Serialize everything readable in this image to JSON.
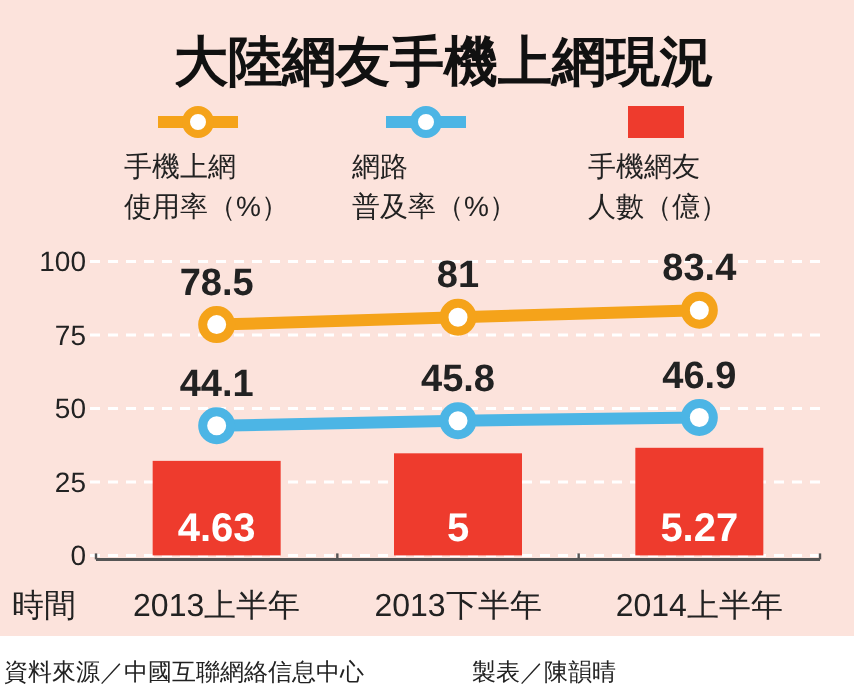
{
  "chart_data": {
    "type": "bar",
    "title": "大陸網友手機上網現況",
    "xlabel": "時間",
    "categories": [
      "2013上半年",
      "2013下半年",
      "2014上半年"
    ],
    "series": [
      {
        "name": "手機上網使用率（%）",
        "type": "line",
        "color": "#f5a31a",
        "values": [
          78.5,
          81,
          83.4
        ]
      },
      {
        "name": "網路普及率（%）",
        "type": "line",
        "color": "#4cb5e5",
        "values": [
          44.1,
          45.8,
          46.9
        ]
      },
      {
        "name": "手機網友人數（億）",
        "axis": "y2",
        "color": "#ee3b2d",
        "values": [
          4.63,
          5,
          5.27
        ]
      }
    ],
    "ylim": [
      0,
      100
    ],
    "yticks": [
      0,
      25,
      50,
      75,
      100
    ],
    "y2lim": [
      0,
      14.4
    ],
    "grid": "y",
    "legend": "top",
    "marker": "circle",
    "line_style": "solid",
    "data_labels": true,
    "annotations": [
      "資料來源／中國互聯網絡信息中心",
      "製表／陳韻晴"
    ]
  }
}
